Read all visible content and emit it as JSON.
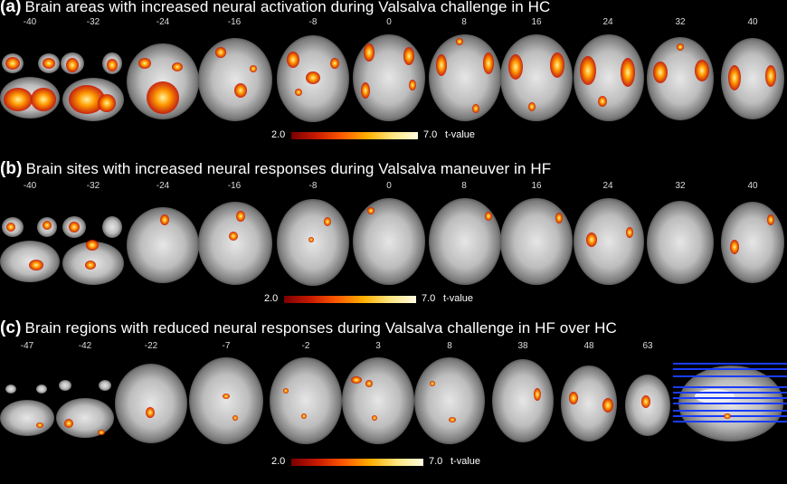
{
  "panels": [
    {
      "letter": "(a)",
      "title": "Brain areas with increased neural activation during Valsalva challenge in HC",
      "slices": [
        "-40",
        "-32",
        "-24",
        "-16",
        "-8",
        "0",
        "8",
        "16",
        "24",
        "32",
        "40"
      ],
      "scale": {
        "min": "2.0",
        "max": "7.0",
        "unit": "t-value"
      }
    },
    {
      "letter": "(b)",
      "title": "Brain sites with increased neural responses during Valsalva maneuver in HF",
      "slices": [
        "-40",
        "-32",
        "-24",
        "-16",
        "-8",
        "0",
        "8",
        "16",
        "24",
        "32",
        "40"
      ],
      "scale": {
        "min": "2.0",
        "max": "7.0",
        "unit": "t-value"
      }
    },
    {
      "letter": "(c)",
      "title": "Brain regions with reduced neural responses during Valsalva challenge in HF over HC",
      "slices": [
        "-47",
        "-42",
        "-22",
        "-7",
        "-2",
        "3",
        "8",
        "38",
        "48",
        "63"
      ],
      "scale": {
        "min": "2.0",
        "max": "7.0",
        "unit": "t-value"
      }
    }
  ],
  "colors": {
    "background": "#000000",
    "activation_low": "#8b0000",
    "activation_high": "#fff7c0",
    "sagittal_lines": "#1a3cff"
  }
}
